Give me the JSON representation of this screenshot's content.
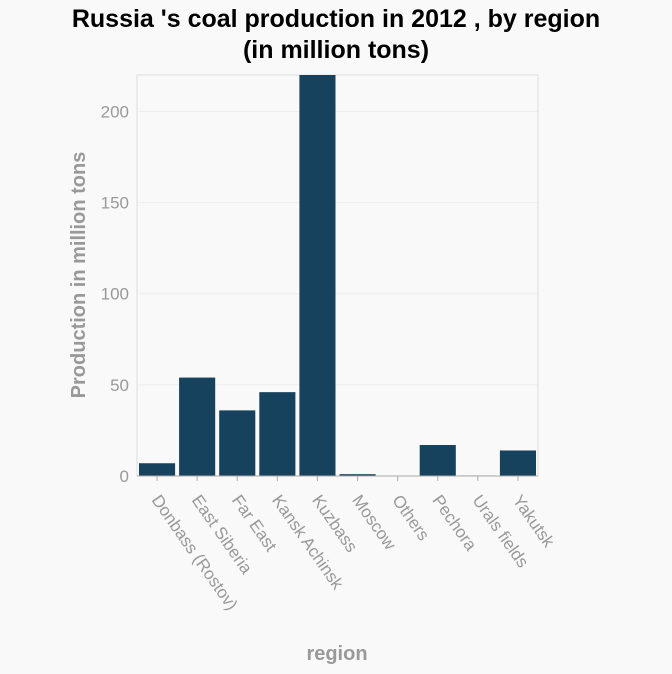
{
  "chart_data": {
    "type": "bar",
    "title_line1": "Russia 's coal production in 2012 , by region",
    "title_line2": "(in million tons)",
    "xlabel": "region",
    "ylabel": "Production in million tons",
    "categories": [
      "Donbass (Rostov)",
      "East Siberia",
      "Far East",
      "Kansk Achinsk",
      "Kuzbass",
      "Moscow",
      "Others",
      "Pechora",
      "Urals fields",
      "Yakutsk"
    ],
    "values": [
      7,
      54,
      36,
      46,
      220,
      1,
      0.2,
      17,
      0.3,
      14
    ],
    "ylim": [
      0,
      220
    ],
    "yticks": [
      0,
      50,
      100,
      150,
      200
    ],
    "grid": true,
    "bar_color": "#16425e"
  }
}
